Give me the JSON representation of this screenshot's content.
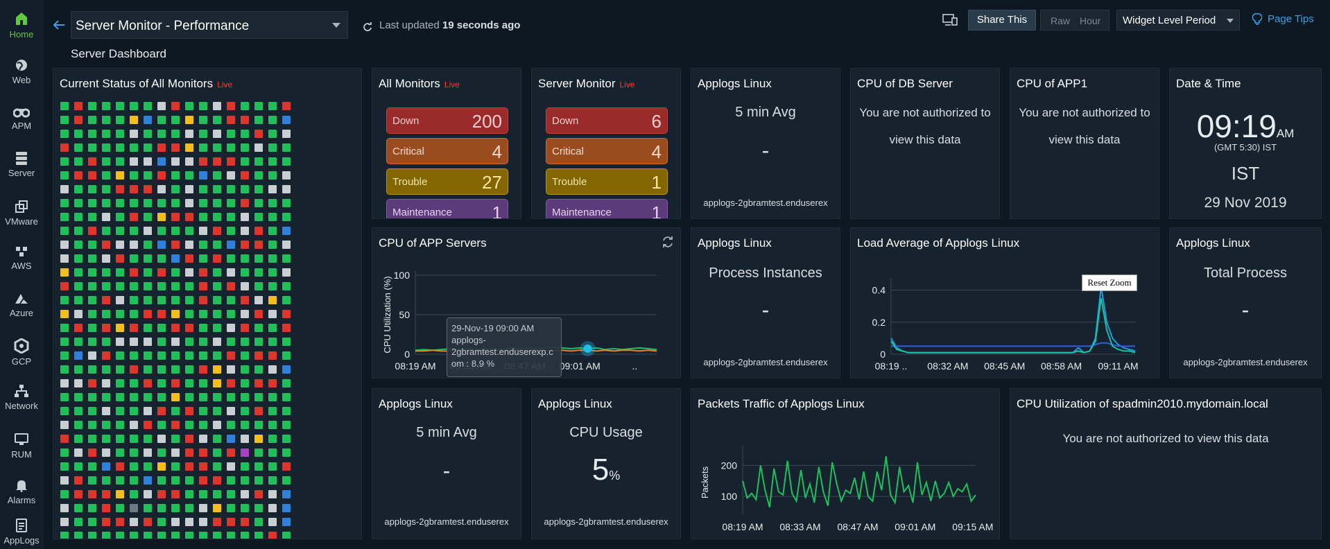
{
  "sidebar": {
    "items": [
      {
        "label": "Home",
        "icon": "home-icon"
      },
      {
        "label": "Web",
        "icon": "globe-icon"
      },
      {
        "label": "APM",
        "icon": "binoculars-icon"
      },
      {
        "label": "Server",
        "icon": "server-icon"
      },
      {
        "label": "VMware",
        "icon": "vmware-icon"
      },
      {
        "label": "AWS",
        "icon": "aws-icon"
      },
      {
        "label": "Azure",
        "icon": "azure-icon"
      },
      {
        "label": "GCP",
        "icon": "gcp-icon"
      },
      {
        "label": "Network",
        "icon": "network-icon"
      },
      {
        "label": "RUM",
        "icon": "rum-icon"
      },
      {
        "label": "Alarms",
        "icon": "bell-icon"
      },
      {
        "label": "AppLogs",
        "icon": "applogs-icon"
      }
    ]
  },
  "header": {
    "dashboard_title": "Server Monitor - Performance",
    "subtitle": "Server Dashboard",
    "last_updated_prefix": "Last updated",
    "last_updated_value": "19 seconds ago",
    "share_label": "Share This",
    "raw_label": "Raw",
    "hour_label": "Hour",
    "period_label": "Widget Level Period",
    "tips_label": "Page Tips"
  },
  "current_status": {
    "title": "Current Status of All Monitors",
    "live": "Live",
    "colors": {
      "up": "#1fc05c",
      "down": "#e0342f",
      "trouble": "#f2c01a",
      "suspended": "#c9ced3",
      "maintenance": "#2f80d6",
      "purple": "#a543c2",
      "grey": "#6c7a86"
    }
  },
  "all_monitors": {
    "title": "All Monitors",
    "live": "Live",
    "rows": [
      {
        "label": "Down",
        "value": "200"
      },
      {
        "label": "Critical",
        "value": "4"
      },
      {
        "label": "Trouble",
        "value": "27"
      },
      {
        "label": "Maintenance",
        "value": "1"
      }
    ]
  },
  "server_monitor": {
    "title": "Server Monitor",
    "live": "Live",
    "rows": [
      {
        "label": "Down",
        "value": "6"
      },
      {
        "label": "Critical",
        "value": "4"
      },
      {
        "label": "Trouble",
        "value": "1"
      },
      {
        "label": "Maintenance",
        "value": "1"
      }
    ]
  },
  "applogs_5min_top": {
    "title": "Applogs Linux",
    "metric": "5 min Avg",
    "value": "-",
    "source": "applogs-2gbramtest.enduserex"
  },
  "cpu_db": {
    "title": "CPU of DB Server",
    "message_line1": "You are not authorized to",
    "message_line2": "view this data"
  },
  "cpu_app1": {
    "title": "CPU of APP1",
    "message_line1": "You are not authorized to",
    "message_line2": "view this data"
  },
  "datetime": {
    "title": "Date & Time",
    "time": "09:19",
    "ampm": "AM",
    "gmt": "(GMT 5:30) IST",
    "tz": "IST",
    "date": "29 Nov 2019"
  },
  "cpu_app_servers": {
    "title": "CPU of APP Servers",
    "ylabel": "CPU Utilization (%)",
    "tooltip_line1": "29-Nov-19 09:00 AM",
    "tooltip_line2": "applogs-",
    "tooltip_line3": "2gbramtest.enduserexp.c",
    "tooltip_line4": "om : 8.9 %"
  },
  "process_instances": {
    "title": "Applogs Linux",
    "metric": "Process Instances",
    "value": "-",
    "source": "applogs-2gbramtest.enduserex"
  },
  "load_average": {
    "title": "Load Average of Applogs Linux",
    "reset_zoom": "Reset Zoom"
  },
  "total_process": {
    "title": "Applogs Linux",
    "metric": "Total Process",
    "value": "-",
    "source": "applogs-2gbramtest.enduserex"
  },
  "applogs_5min_bottom": {
    "title": "Applogs Linux",
    "metric": "5 min Avg",
    "value": "-",
    "source": "applogs-2gbramtest.enduserex"
  },
  "cpu_usage": {
    "title": "Applogs Linux",
    "metric": "CPU Usage",
    "value": "5",
    "unit": "%",
    "source": "applogs-2gbramtest.enduserex"
  },
  "packets_traffic": {
    "title": "Packets Traffic of Applogs Linux",
    "ylabel": "Packets"
  },
  "cpu_spadmin": {
    "title": "CPU Utilization of spadmin2010.mydomain.local",
    "message": "You are not authorized to view this data"
  },
  "chart_data": [
    {
      "type": "line",
      "ylabel": "CPU Utilization (%)",
      "ylim": [
        0,
        100
      ],
      "y_ticks": [
        0,
        50,
        100
      ],
      "x_ticks": [
        "08:19 AM",
        "08:33 AM",
        "08:47 AM",
        "09:01 AM",
        ".."
      ],
      "series": [
        {
          "color": "#1fc05c",
          "values": [
            5,
            6,
            5,
            6,
            7,
            6,
            7,
            6,
            7,
            7,
            6,
            8,
            7,
            8,
            7,
            8,
            9,
            8,
            7,
            8,
            7,
            8,
            6,
            7,
            6,
            7,
            8,
            7,
            6
          ]
        },
        {
          "color": "#e8832c",
          "values": [
            4,
            4,
            5,
            4,
            4,
            5,
            5,
            4,
            5,
            5,
            4,
            5,
            5,
            4,
            5,
            5,
            4,
            5,
            4,
            5,
            5,
            4,
            5,
            4,
            5,
            5,
            4,
            5,
            4
          ]
        }
      ]
    },
    {
      "type": "line",
      "ylim": [
        0,
        0.45
      ],
      "y_ticks": [
        0,
        0.2,
        0.4
      ],
      "x_ticks": [
        "08:19 ..",
        "08:32 AM",
        "08:45 AM",
        "08:58 AM",
        "09:11 AM"
      ],
      "series": [
        {
          "color": "#1c9fe0",
          "values": [
            0.1,
            0.04,
            0.02,
            0.01,
            0.01,
            0.01,
            0.01,
            0.01,
            0.01,
            0.01,
            0.01,
            0.01,
            0.01,
            0.01,
            0.01,
            0.01,
            0.01,
            0.01,
            0.01,
            0.01,
            0.01,
            0.01,
            0.01,
            0.01,
            0.01,
            0.01,
            0.01,
            0.01,
            0.01,
            0.01,
            0.01,
            0.01,
            0.01,
            0.04,
            0.01,
            0.02,
            0.1,
            0.42,
            0.2,
            0.1,
            0.06,
            0.04,
            0.03,
            0.02
          ]
        },
        {
          "color": "#2f5fe0",
          "values": [
            0.05,
            0.05,
            0.05,
            0.05,
            0.05,
            0.05,
            0.05,
            0.05,
            0.05,
            0.05,
            0.05,
            0.05,
            0.05,
            0.05,
            0.05,
            0.05,
            0.05,
            0.05,
            0.05,
            0.05,
            0.05,
            0.05,
            0.05,
            0.05,
            0.05,
            0.05,
            0.05,
            0.05,
            0.05,
            0.05,
            0.05,
            0.05,
            0.05,
            0.05,
            0.05,
            0.05,
            0.06,
            0.07,
            0.07,
            0.06,
            0.05,
            0.05,
            0.05,
            0.05
          ]
        },
        {
          "color": "#1fc0a0",
          "values": [
            0.08,
            0.03,
            0.02,
            0.01,
            0.01,
            0.01,
            0.01,
            0.01,
            0.01,
            0.01,
            0.01,
            0.01,
            0.01,
            0.01,
            0.01,
            0.01,
            0.01,
            0.01,
            0.01,
            0.01,
            0.01,
            0.01,
            0.01,
            0.01,
            0.01,
            0.01,
            0.01,
            0.01,
            0.01,
            0.01,
            0.01,
            0.01,
            0.01,
            0.02,
            0.01,
            0.02,
            0.08,
            0.35,
            0.15,
            0.05,
            0.03,
            0.02,
            0.02,
            0.01
          ]
        }
      ]
    },
    {
      "type": "line",
      "ylabel": "Packets",
      "ylim": [
        40,
        250
      ],
      "y_ticks": [
        100,
        200
      ],
      "x_ticks": [
        "08:19 AM",
        "08:33 AM",
        "08:47 AM",
        "09:01 AM",
        "09:15 AM"
      ],
      "series": [
        {
          "color": "#1fc05c",
          "values": [
            150,
            95,
            110,
            90,
            200,
            120,
            65,
            190,
            115,
            105,
            215,
            110,
            85,
            185,
            95,
            140,
            80,
            195,
            115,
            70,
            210,
            140,
            85,
            120,
            110,
            160,
            90,
            180,
            100,
            85,
            180,
            120,
            230,
            105,
            80,
            195,
            115,
            135,
            80,
            210,
            105,
            145,
            85,
            150,
            95,
            110,
            145,
            100,
            125,
            115,
            140,
            85,
            105
          ]
        }
      ]
    }
  ]
}
